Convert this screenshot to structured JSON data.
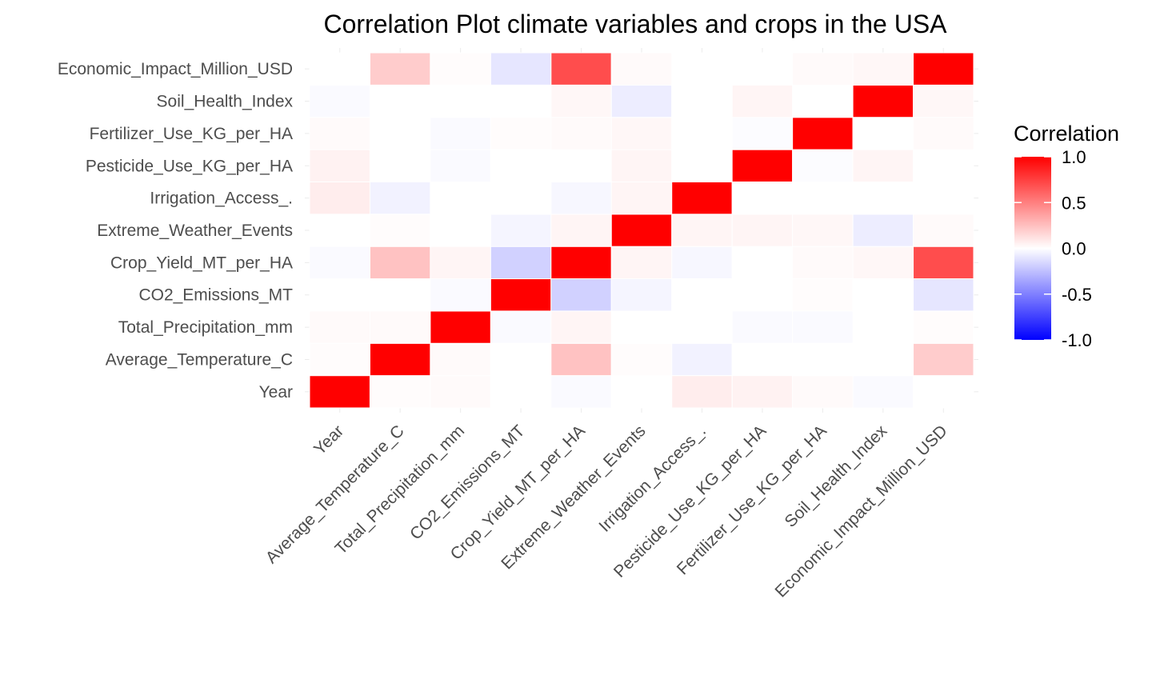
{
  "chart_data": {
    "type": "heatmap",
    "title": "Correlation Plot climate variables and crops in the USA",
    "xlabel": "",
    "ylabel": "",
    "variables": [
      "Year",
      "Average_Temperature_C",
      "Total_Precipitation_mm",
      "CO2_Emissions_MT",
      "Crop_Yield_MT_per_HA",
      "Extreme_Weather_Events",
      "Irrigation_Access_.",
      "Pesticide_Use_KG_per_HA",
      "Fertilizer_Use_KG_per_HA",
      "Soil_Health_Index",
      "Economic_Impact_Million_USD"
    ],
    "matrix": [
      [
        1.0,
        0.01,
        0.02,
        0.0,
        -0.02,
        0.0,
        0.07,
        0.05,
        0.02,
        -0.02,
        0.0
      ],
      [
        0.01,
        1.0,
        0.02,
        0.0,
        0.24,
        0.01,
        -0.05,
        0.0,
        0.0,
        0.0,
        0.2
      ],
      [
        0.02,
        0.02,
        1.0,
        -0.02,
        0.04,
        0.0,
        0.0,
        -0.02,
        -0.02,
        0.0,
        0.01
      ],
      [
        0.0,
        0.0,
        -0.02,
        1.0,
        -0.18,
        -0.04,
        0.0,
        0.0,
        0.01,
        0.0,
        -0.1
      ],
      [
        -0.02,
        0.24,
        0.04,
        -0.18,
        1.0,
        0.04,
        -0.03,
        0.0,
        0.02,
        0.03,
        0.7
      ],
      [
        0.0,
        0.01,
        0.0,
        -0.04,
        0.04,
        1.0,
        0.04,
        0.04,
        0.03,
        -0.07,
        0.02
      ],
      [
        0.07,
        -0.05,
        0.0,
        0.0,
        -0.03,
        0.04,
        1.0,
        0.0,
        0.0,
        0.0,
        0.0
      ],
      [
        0.05,
        0.0,
        -0.02,
        0.0,
        0.0,
        0.04,
        0.0,
        1.0,
        -0.01,
        0.04,
        0.0
      ],
      [
        0.02,
        0.0,
        -0.02,
        0.01,
        0.02,
        0.03,
        0.0,
        -0.01,
        1.0,
        0.0,
        0.02
      ],
      [
        -0.02,
        0.0,
        0.0,
        0.0,
        0.03,
        -0.07,
        0.0,
        0.04,
        0.0,
        1.0,
        0.03
      ],
      [
        0.0,
        0.2,
        0.01,
        -0.1,
        0.7,
        0.02,
        0.0,
        0.0,
        0.02,
        0.03,
        1.0
      ]
    ],
    "color_scale": {
      "low": "#0000FF",
      "mid": "#FFFFFF",
      "high": "#FF0000",
      "limits": [
        -1,
        1
      ]
    },
    "legend": {
      "title": "Correlation",
      "ticks": [
        "1.0",
        "0.5",
        "0.0",
        "-0.5",
        "-1.0"
      ],
      "placement": "right"
    },
    "grid": true
  }
}
